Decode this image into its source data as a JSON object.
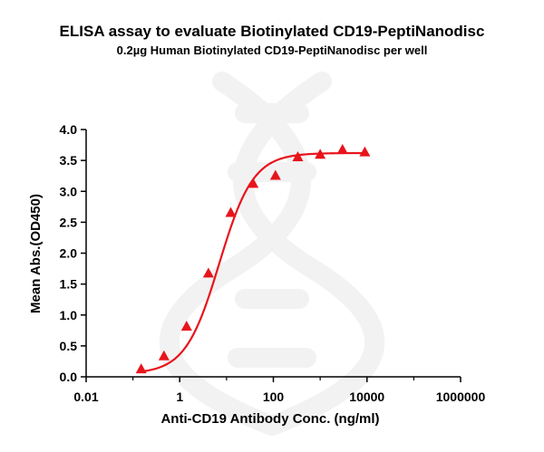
{
  "chart_data": {
    "type": "scatter",
    "title": "ELISA assay to evaluate Biotinylated CD19-PeptiNanodisc",
    "subtitle": "0.2µg Human Biotinylated CD19-PeptiNanodisc per well",
    "xlabel": "Anti-CD19 Antibody Conc. (ng/ml)",
    "ylabel": "Mean Abs.(OD450)",
    "x_scale": "log",
    "xlim": [
      0.01,
      1000000
    ],
    "ylim": [
      0.0,
      4.0
    ],
    "x_ticks": [
      0.01,
      1,
      100,
      10000,
      1000000
    ],
    "x_tick_labels": [
      "0.01",
      "1",
      "100",
      "10000",
      "1000000"
    ],
    "y_ticks": [
      0.0,
      0.5,
      1.0,
      1.5,
      2.0,
      2.5,
      3.0,
      3.5,
      4.0
    ],
    "y_tick_labels": [
      "0.0",
      "0.5",
      "1.0",
      "1.5",
      "2.0",
      "2.5",
      "3.0",
      "3.5",
      "4.0"
    ],
    "grid": false,
    "legend": "none",
    "series": [
      {
        "marker": "triangle",
        "color": "#e8141c",
        "x": [
          0.15,
          0.46,
          1.4,
          4.1,
          12.3,
          37,
          111,
          333,
          1000,
          3000,
          9000
        ],
        "y": [
          0.13,
          0.34,
          0.82,
          1.68,
          2.66,
          3.13,
          3.26,
          3.56,
          3.6,
          3.68,
          3.64
        ]
      }
    ],
    "fit_curve": {
      "color": "#e8141c",
      "model": "4PL",
      "bottom": 0.05,
      "top": 3.62,
      "ec50": 7.0,
      "hill": 1.2,
      "x_range": [
        0.15,
        9000
      ]
    }
  }
}
